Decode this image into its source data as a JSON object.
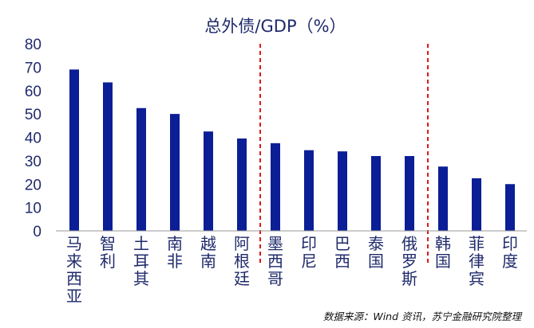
{
  "chart_data": {
    "type": "bar",
    "title": "总外债/GDP（%）",
    "categories": [
      "马来西亚",
      "智利",
      "土耳其",
      "南非",
      "越南",
      "阿根廷",
      "墨西哥",
      "印尼",
      "巴西",
      "泰国",
      "俄罗斯",
      "韩国",
      "菲律宾",
      "印度"
    ],
    "values": [
      69,
      63.5,
      52.5,
      50,
      42.5,
      39.5,
      37.5,
      34.5,
      34,
      32,
      32,
      27.5,
      22.5,
      20
    ],
    "ylim": [
      0,
      80
    ],
    "yticks": [
      0,
      10,
      20,
      30,
      40,
      50,
      60,
      70,
      80
    ],
    "xlabel": "",
    "ylabel": "",
    "group_dividers_after_index": [
      5,
      10
    ],
    "source": "数据来源：Wind 资讯，苏宁金融研究院整理",
    "bar_color": "#0b1e96",
    "divider_color": "#e01818",
    "text_color": "#1f2a6b"
  }
}
